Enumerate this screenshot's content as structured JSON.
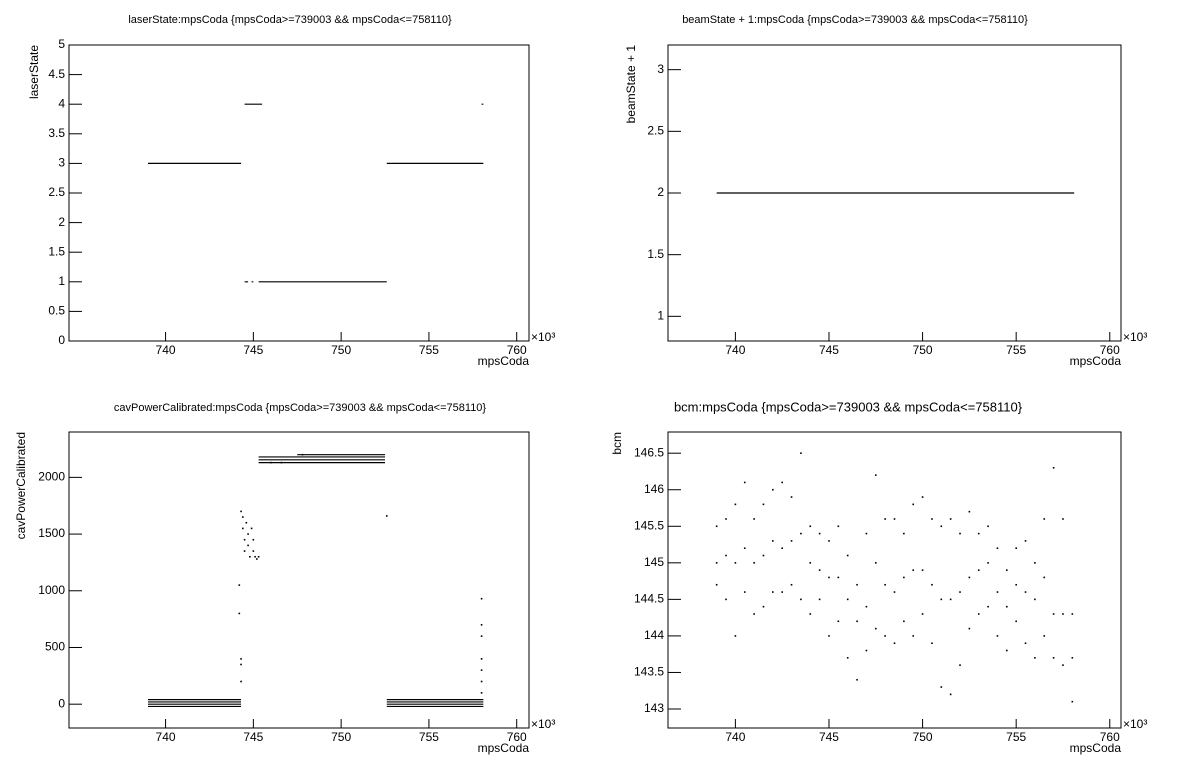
{
  "chart_data": [
    {
      "type": "line",
      "title": "laserState:mpsCoda {mpsCoda>=739003 && mpsCoda<=758110}",
      "x_label": "mpsCoda",
      "y_label": "laserState",
      "x_multiplier": "×10³",
      "color": "#000000",
      "xlim": [
        734.5,
        760.7
      ],
      "xticks": [
        740,
        745,
        750,
        755,
        760
      ],
      "ylim": [
        0,
        5
      ],
      "yticks": [
        0,
        0.5,
        1,
        1.5,
        2,
        2.5,
        3,
        3.5,
        4,
        4.5,
        5
      ],
      "series": [
        {
          "type": "line",
          "x": [
            739.0,
            744.3,
            null,
            744.5,
            745.5,
            null,
            744.5,
            744.7,
            null,
            744.9,
            745.0,
            null,
            745.3,
            752.6,
            null,
            752.6,
            758.1,
            null,
            758.0,
            758.1
          ],
          "y": [
            3,
            3,
            null,
            4,
            4,
            null,
            1,
            1,
            null,
            1,
            1,
            null,
            1,
            1,
            null,
            3,
            3,
            null,
            4,
            4
          ]
        }
      ]
    },
    {
      "type": "line",
      "title": "beamState + 1:mpsCoda {mpsCoda>=739003 && mpsCoda<=758110}",
      "x_label": "mpsCoda",
      "y_label": "beamState + 1",
      "x_multiplier": "×10³",
      "color": "#000000",
      "xlim": [
        736.4,
        760.6
      ],
      "xticks": [
        740,
        745,
        750,
        755,
        760
      ],
      "ylim": [
        0.8,
        3.2
      ],
      "yticks": [
        1,
        1.5,
        2,
        2.5,
        3
      ],
      "series": [
        {
          "type": "line",
          "x": [
            739.0,
            758.1
          ],
          "y": [
            2,
            2
          ]
        }
      ]
    },
    {
      "type": "scatter",
      "title": "cavPowerCalibrated:mpsCoda {mpsCoda>=739003 && mpsCoda<=758110}",
      "x_label": "mpsCoda",
      "y_label": "cavPowerCalibrated",
      "x_multiplier": "×10³",
      "color": "#000000",
      "xlim": [
        734.5,
        760.7
      ],
      "xticks": [
        740,
        745,
        750,
        755,
        760
      ],
      "ylim": [
        -210,
        2400
      ],
      "yticks": [
        0,
        500,
        1000,
        1500,
        2000
      ],
      "series": [
        {
          "type": "line",
          "x": [
            739.0,
            744.3,
            null,
            739.0,
            744.3,
            null,
            739.0,
            744.3,
            null,
            739.0,
            744.3,
            null,
            752.6,
            758.1,
            null,
            752.6,
            758.1,
            null,
            752.6,
            758.1,
            null,
            752.6,
            758.1,
            null,
            745.3,
            752.5,
            null,
            745.3,
            752.5,
            null,
            745.3,
            752.5,
            null,
            747.5,
            752.5
          ],
          "y": [
            40,
            40,
            null,
            20,
            20,
            null,
            0,
            0,
            null,
            -20,
            -20,
            null,
            40,
            40,
            null,
            20,
            20,
            null,
            0,
            0,
            null,
            -20,
            -20,
            null,
            2130,
            2130,
            null,
            2155,
            2155,
            null,
            2180,
            2180,
            null,
            2200,
            2200
          ]
        },
        {
          "type": "scatter",
          "x": [
            744.3,
            744.4,
            744.4,
            744.5,
            744.5,
            744.6,
            744.7,
            744.7,
            744.8,
            744.9,
            745.0,
            745.1,
            745.2,
            745.3,
            745.0,
            744.2,
            744.2,
            744.3,
            744.3,
            744.3,
            752.6,
            758.0,
            758.0,
            758.0,
            758.0,
            758.0,
            758.0,
            758.0,
            746.0,
            746.6,
            747.8
          ],
          "y": [
            1700,
            1650,
            1550,
            1450,
            1350,
            1600,
            1500,
            1400,
            1300,
            1550,
            1350,
            1300,
            1280,
            1300,
            1450,
            1050,
            800,
            400,
            350,
            200,
            1660,
            930,
            700,
            600,
            400,
            300,
            200,
            100,
            2130,
            2130,
            2200
          ]
        }
      ]
    },
    {
      "type": "scatter",
      "title": "bcm:mpsCoda {mpsCoda>=739003 && mpsCoda<=758110}",
      "x_label": "mpsCoda",
      "y_label": "bcm",
      "x_multiplier": "×10³",
      "color": "#000000",
      "xlim": [
        736.4,
        760.6
      ],
      "xticks": [
        740,
        745,
        750,
        755,
        760
      ],
      "ylim": [
        142.74,
        146.79
      ],
      "yticks": [
        143,
        143.5,
        144,
        144.5,
        145,
        145.5,
        146,
        146.5
      ],
      "series": [
        {
          "type": "scatter",
          "x": [
            739.0,
            739.0,
            739.0,
            739.5,
            739.5,
            739.5,
            740.0,
            740.0,
            740.0,
            740.5,
            740.5,
            740.5,
            741.0,
            741.0,
            741.0,
            741.5,
            741.5,
            741.5,
            742.0,
            742.0,
            742.0,
            742.5,
            742.5,
            742.5,
            743.0,
            743.0,
            743.0,
            743.5,
            743.5,
            743.5,
            744.0,
            744.0,
            744.0,
            744.5,
            744.5,
            744.5,
            745.0,
            745.0,
            745.0,
            745.5,
            745.5,
            745.5,
            746.0,
            746.0,
            746.0,
            746.5,
            746.5,
            746.5,
            747.0,
            747.0,
            747.0,
            747.5,
            747.5,
            747.5,
            748.0,
            748.0,
            748.0,
            748.5,
            748.5,
            748.5,
            749.0,
            749.0,
            749.0,
            749.5,
            749.5,
            749.5,
            750.0,
            750.0,
            750.0,
            750.5,
            750.5,
            750.5,
            751.0,
            751.0,
            751.0,
            751.5,
            751.5,
            751.5,
            752.0,
            752.0,
            752.0,
            752.5,
            752.5,
            752.5,
            753.0,
            753.0,
            753.0,
            753.5,
            753.5,
            753.5,
            754.0,
            754.0,
            754.0,
            754.5,
            754.5,
            754.5,
            755.0,
            755.0,
            755.0,
            755.5,
            755.5,
            755.5,
            756.0,
            756.0,
            756.0,
            756.5,
            756.5,
            756.5,
            757.0,
            757.0,
            757.0,
            757.5,
            757.5,
            757.5,
            758.0,
            758.0,
            758.0
          ],
          "y": [
            145.5,
            145.0,
            144.7,
            145.6,
            145.1,
            144.5,
            145.8,
            145.0,
            144.0,
            146.1,
            145.2,
            144.6,
            145.6,
            145.0,
            144.3,
            145.8,
            145.1,
            144.4,
            146.0,
            145.3,
            144.6,
            146.1,
            145.2,
            144.6,
            145.9,
            145.3,
            144.7,
            146.5,
            145.4,
            144.5,
            145.5,
            145.0,
            144.3,
            145.4,
            144.9,
            144.5,
            145.3,
            144.8,
            144.0,
            145.5,
            144.8,
            144.2,
            145.1,
            144.5,
            143.7,
            144.7,
            144.2,
            143.4,
            145.4,
            144.4,
            143.8,
            146.2,
            145.0,
            144.1,
            145.6,
            144.7,
            144.0,
            145.6,
            144.6,
            143.9,
            145.4,
            144.8,
            144.2,
            145.8,
            144.9,
            144.0,
            145.9,
            144.9,
            144.3,
            145.6,
            144.7,
            143.9,
            145.5,
            144.5,
            143.3,
            145.6,
            144.5,
            143.2,
            145.4,
            144.6,
            143.6,
            145.7,
            144.8,
            144.1,
            145.4,
            144.9,
            144.3,
            145.5,
            145.0,
            144.4,
            145.2,
            144.6,
            144.0,
            144.9,
            144.4,
            143.8,
            145.2,
            144.7,
            144.2,
            145.3,
            144.6,
            143.9,
            145.0,
            144.5,
            143.7,
            145.6,
            144.8,
            144.0,
            146.3,
            144.3,
            143.7,
            145.6,
            144.3,
            143.6,
            144.3,
            143.7,
            143.1
          ]
        }
      ]
    }
  ]
}
